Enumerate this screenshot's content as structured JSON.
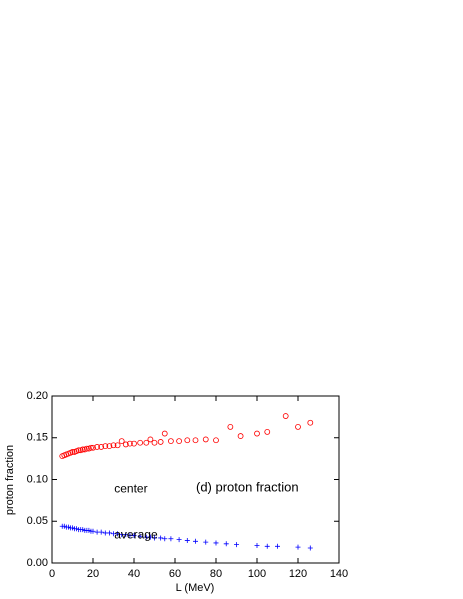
{
  "chart_data": {
    "type": "scatter",
    "title": "(d) proton fraction",
    "x_label": "L (MeV)",
    "y_label": "proton fraction",
    "xlim": [
      0,
      140
    ],
    "xticks": [
      0,
      20,
      40,
      60,
      80,
      100,
      120,
      140
    ],
    "ylim": [
      0,
      0.2
    ],
    "yticks": [
      {
        "value": 0,
        "label": "0.00"
      },
      0.05,
      {
        "value": 0.1,
        "label": "0.10"
      },
      0.15,
      {
        "value": 0.2,
        "label": "0.20"
      }
    ],
    "series": [
      {
        "name": "center",
        "color": "#ff0000",
        "marker": "circle",
        "x": [
          5,
          6,
          7,
          8,
          9,
          10,
          11,
          12,
          13,
          14,
          15,
          16,
          17,
          18,
          19,
          20,
          22,
          24,
          26,
          28,
          30,
          32,
          34,
          36,
          38,
          40,
          43,
          46,
          48,
          50,
          53,
          55,
          58,
          62,
          66,
          70,
          75,
          80,
          87,
          92,
          100,
          105,
          114,
          120,
          126
        ],
        "values": [
          0.128,
          0.129,
          0.13,
          0.131,
          0.132,
          0.133,
          0.133,
          0.134,
          0.135,
          0.135,
          0.136,
          0.136,
          0.137,
          0.137,
          0.138,
          0.138,
          0.139,
          0.139,
          0.14,
          0.14,
          0.141,
          0.141,
          0.146,
          0.142,
          0.143,
          0.143,
          0.144,
          0.144,
          0.148,
          0.144,
          0.145,
          0.155,
          0.146,
          0.146,
          0.147,
          0.147,
          0.148,
          0.147,
          0.163,
          0.152,
          0.155,
          0.157,
          0.176,
          0.163,
          0.168
        ]
      },
      {
        "name": "average",
        "color": "#0000ff",
        "marker": "plus",
        "x": [
          5,
          6,
          7,
          8,
          9,
          10,
          11,
          12,
          13,
          14,
          15,
          16,
          17,
          18,
          19,
          20,
          22,
          24,
          26,
          28,
          30,
          32,
          34,
          36,
          38,
          40,
          43,
          46,
          48,
          50,
          53,
          55,
          58,
          62,
          66,
          70,
          75,
          80,
          85,
          90,
          100,
          105,
          110,
          120,
          126
        ],
        "values": [
          0.044,
          0.044,
          0.043,
          0.043,
          0.042,
          0.042,
          0.041,
          0.041,
          0.04,
          0.04,
          0.04,
          0.039,
          0.039,
          0.039,
          0.038,
          0.038,
          0.037,
          0.037,
          0.036,
          0.036,
          0.035,
          0.035,
          0.034,
          0.034,
          0.033,
          0.033,
          0.032,
          0.031,
          0.031,
          0.03,
          0.03,
          0.029,
          0.029,
          0.028,
          0.027,
          0.026,
          0.025,
          0.024,
          0.023,
          0.022,
          0.021,
          0.02,
          0.02,
          0.019,
          0.018
        ]
      }
    ]
  }
}
